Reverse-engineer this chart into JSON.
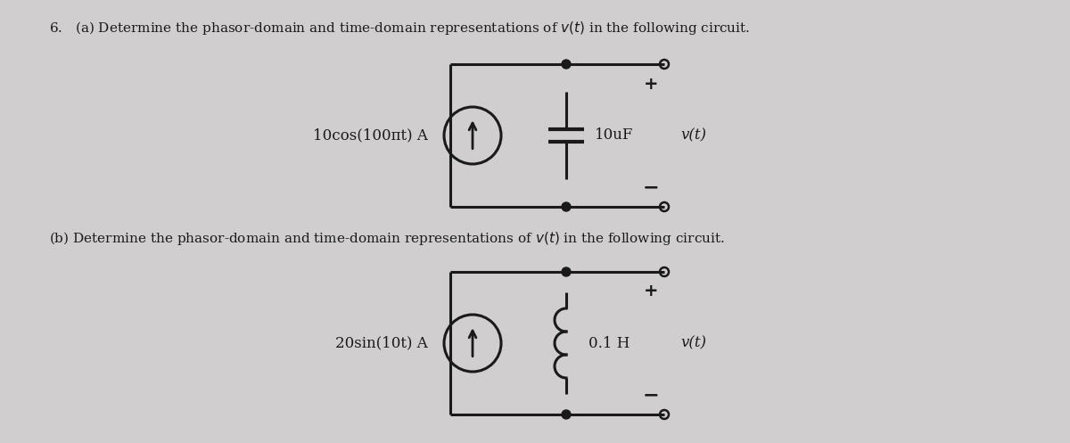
{
  "bg_color": "#d0cecf",
  "line_color": "#1a1a1a",
  "title_a": "6.   (a) Determine the phasor-domain and time-domain representations of $v(t)$ in the following circuit.",
  "title_b": "(b) Determine the phasor-domain and time-domain representations of $v(t)$ in the following circuit.",
  "label_a_source": "10cos(100πt) A",
  "label_a_component": "10uF",
  "label_a_vt": "v(t)",
  "label_b_source": "20sin(10t) A",
  "label_b_component": "0.1 H",
  "label_b_vt": "v(t)",
  "font_size_title": 11.0,
  "font_size_label": 12.0,
  "font_size_plusminus": 14
}
